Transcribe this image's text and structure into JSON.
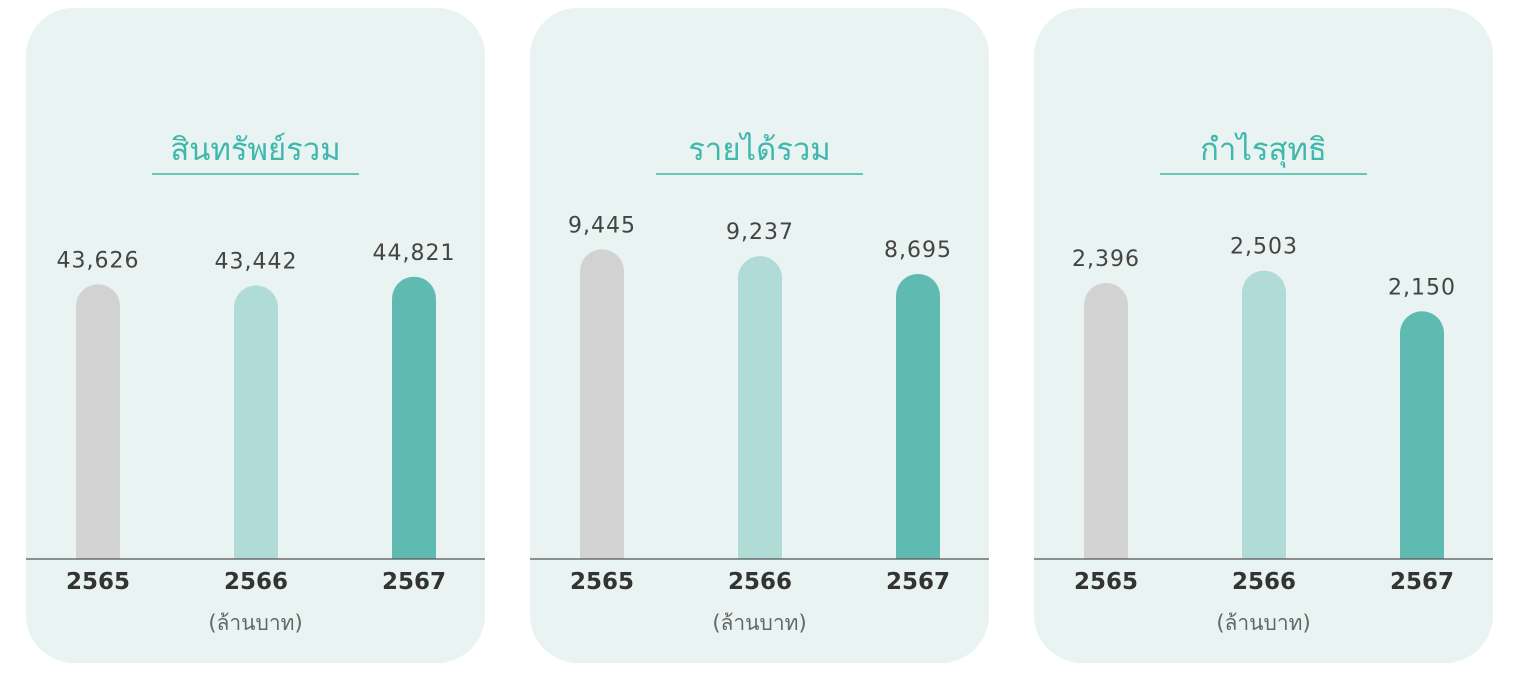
{
  "colors": {
    "card_bg": "#e9f3f1",
    "accent": "#3eb8ac",
    "year_2565": "#d2d2d2",
    "year_2566": "#b1dbd6",
    "year_2567": "#5fbbb2",
    "baseline": "#555555"
  },
  "chart_data": [
    {
      "type": "bar",
      "title": "สินทรัพย์รวม",
      "categories": [
        "2565",
        "2566",
        "2567"
      ],
      "values": [
        43626,
        43442,
        44821
      ],
      "value_labels": [
        "43,626",
        "43,442",
        "44,821"
      ],
      "unit_label": "(ล้านบาท)",
      "ylim": [
        0,
        50500
      ]
    },
    {
      "type": "bar",
      "title": "รายได้รวม",
      "categories": [
        "2565",
        "2566",
        "2567"
      ],
      "values": [
        9445,
        9237,
        8695
      ],
      "value_labels": [
        "9,445",
        "9,237",
        "8,695"
      ],
      "unit_label": "(ล้านบาท)",
      "ylim": [
        0,
        9700
      ]
    },
    {
      "type": "bar",
      "title": "กำไรสุทธิ",
      "categories": [
        "2565",
        "2566",
        "2567"
      ],
      "values": [
        2396,
        2503,
        2150
      ],
      "value_labels": [
        "2,396",
        "2,503",
        "2,150"
      ],
      "unit_label": "(ล้านบาท)",
      "ylim": [
        0,
        2760
      ]
    }
  ]
}
